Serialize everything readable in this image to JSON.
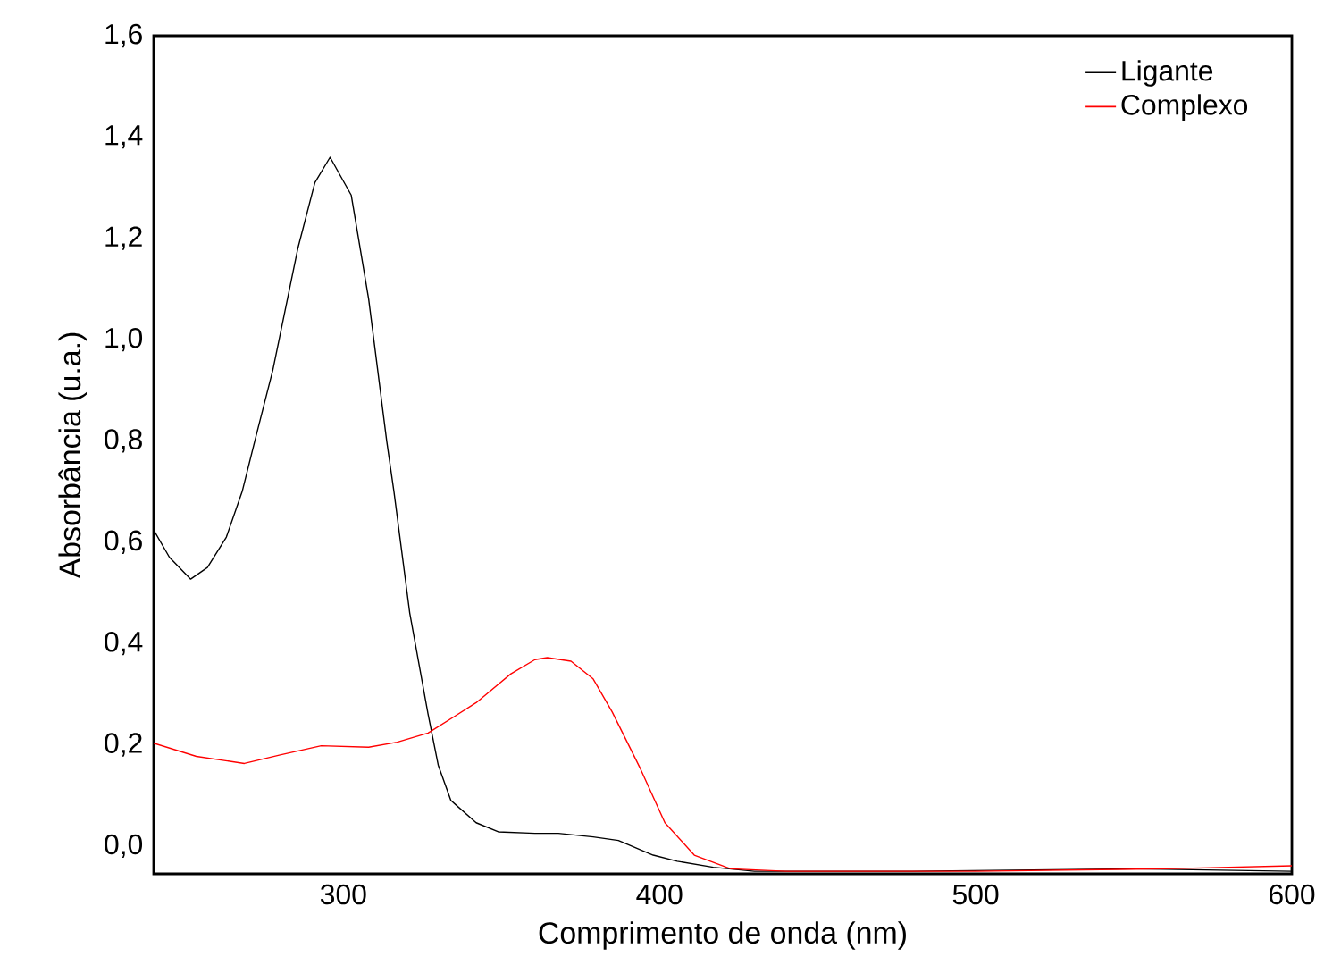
{
  "chart_data": {
    "type": "line",
    "xlabel": "Comprimento de onda (nm)",
    "ylabel": "Absorbância (u.a.)",
    "xlim": [
      240,
      600
    ],
    "ylim": [
      -0.055,
      1.6
    ],
    "xticks": [
      300,
      400,
      500,
      600
    ],
    "yticks": [
      {
        "value": 0,
        "label": "0,0"
      },
      {
        "value": 0.2,
        "label": "0,2"
      },
      {
        "value": 0.4,
        "label": "0,4"
      },
      {
        "value": 0.6,
        "label": "0,6"
      },
      {
        "value": 0.8,
        "label": "0,8"
      },
      {
        "value": 1.0,
        "label": "1,0"
      },
      {
        "value": 1.2,
        "label": "1,2"
      },
      {
        "value": 1.4,
        "label": "1,4"
      },
      {
        "value": 1.6,
        "label": "1,6"
      }
    ],
    "grid": false,
    "legend": "top right",
    "marker": "none",
    "line_style": "solid",
    "series": [
      {
        "name": "Ligante",
        "color": "#000000",
        "x": [
          240,
          245,
          251.7,
          257,
          263,
          268,
          272,
          277.7,
          285.6,
          291,
          295.8,
          302.5,
          308,
          313.7,
          316,
          321,
          326.8,
          330,
          334,
          342,
          349,
          360.6,
          368,
          379,
          387,
          398,
          405.6,
          417,
          430,
          480,
          550,
          600
        ],
        "values": [
          0.624,
          0.57,
          0.527,
          0.55,
          0.61,
          0.7,
          0.8,
          0.94,
          1.18,
          1.31,
          1.36,
          1.285,
          1.08,
          0.8,
          0.7,
          0.46,
          0.26,
          0.16,
          0.09,
          0.046,
          0.028,
          0.025,
          0.025,
          0.018,
          0.011,
          -0.018,
          -0.03,
          -0.042,
          -0.05,
          -0.05,
          -0.045,
          -0.05
        ]
      },
      {
        "name": "Complexo",
        "color": "#ff0000",
        "x": [
          240,
          253.5,
          268.7,
          280,
          293,
          308,
          317,
          326.8,
          342,
          353,
          360.6,
          364.5,
          372,
          379,
          385,
          394,
          401.7,
          411,
          422.5,
          440,
          500,
          560,
          600
        ],
        "values": [
          0.203,
          0.177,
          0.163,
          0.18,
          0.198,
          0.195,
          0.205,
          0.223,
          0.283,
          0.34,
          0.368,
          0.372,
          0.365,
          0.33,
          0.265,
          0.152,
          0.046,
          -0.018,
          -0.045,
          -0.05,
          -0.05,
          -0.045,
          -0.039
        ]
      }
    ]
  }
}
